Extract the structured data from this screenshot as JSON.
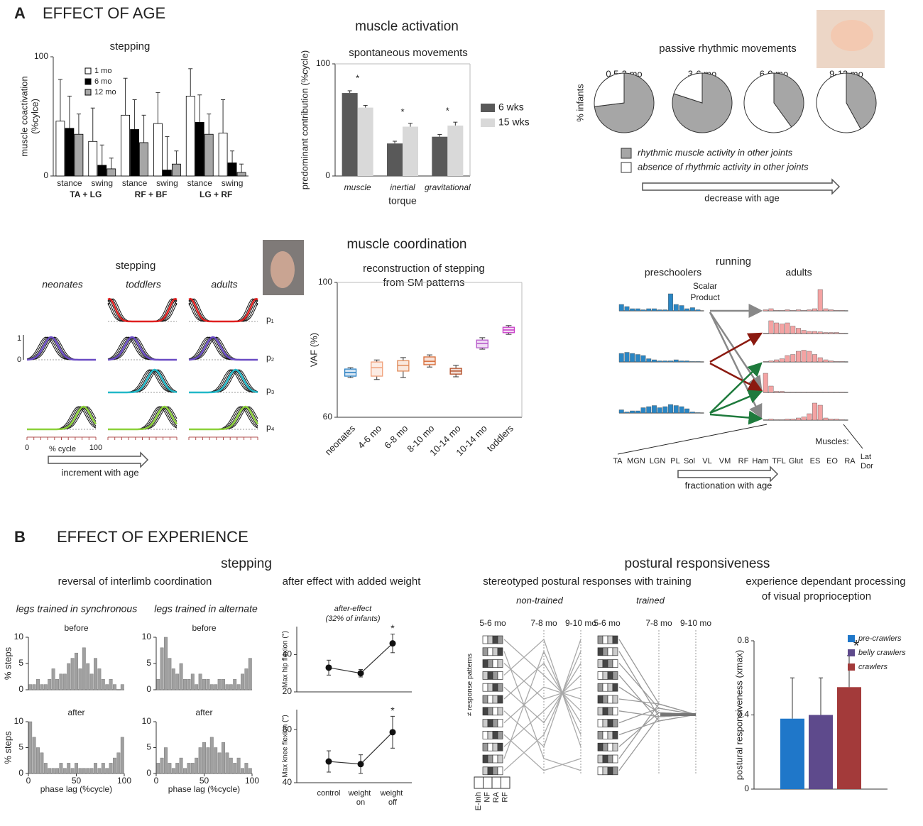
{
  "labels": {
    "panel_a": "A",
    "effect_age": "EFFECT OF AGE",
    "muscle_activation": "muscle activation",
    "muscle_coordination": "muscle coordination",
    "coordination_subtitle": [
      "reconstruction of stepping",
      "from SM patterns"
    ],
    "panel_b": "B",
    "effect_experience": "EFFECT OF EXPERIENCE",
    "stepping_b": "stepping",
    "postural": "postural responsiveness",
    "reversal": "reversal of interlimb coordination",
    "synchronous": "legs trained in synchronous",
    "alternate": "legs trained in alternate",
    "after_effect": "after effect with added weight",
    "after_effect_note": [
      "after-effect",
      "(32% of infants)"
    ],
    "stereotyped": "stereotyped postural responses with training",
    "visual": [
      "experience dependant processing",
      "of  visual proprioception"
    ]
  },
  "traces": {
    "title": "stepping",
    "columns": [
      "neonates",
      "toddlers",
      "adults"
    ],
    "rows": [
      "p₁",
      "p₂",
      "p₃",
      "p₄"
    ],
    "y_labels": [
      "1",
      "0"
    ],
    "x_labels": [
      "0",
      "% cycle",
      "100"
    ],
    "arrow": "increment with age"
  },
  "responses": {
    "groups": [
      "non-trained",
      "trained"
    ],
    "ages": [
      "5-6 mo",
      "7-8 mo",
      "9-10 mo",
      "5-6 mo",
      "7-8 mo",
      "9-10 mo"
    ],
    "ylabel": "≠ response patterns",
    "muscles": [
      "E-Inh",
      "NF",
      "RA",
      "RF"
    ]
  },
  "chart_data": [
    {
      "type": "bar",
      "title": "stepping",
      "ylabel": [
        "muscle coactivation",
        "(%cylce)"
      ],
      "categories": [
        "stance",
        "swing",
        "stance",
        "swing",
        "stance",
        "swing"
      ],
      "groups": [
        "TA + LG",
        "RF + BF",
        "LG + RF"
      ],
      "ylim": [
        0,
        100
      ],
      "yticks": [
        0,
        100
      ],
      "legend": "upper left",
      "series": [
        {
          "name": "1 mo",
          "color": "#ffffff",
          "values": [
            46,
            29,
            51,
            44,
            67,
            36
          ],
          "errors": [
            35,
            28,
            31,
            26,
            23,
            28
          ]
        },
        {
          "name": "6 mo",
          "color": "#000000",
          "values": [
            40,
            9,
            39,
            5,
            45,
            11
          ],
          "errors": [
            27,
            17,
            25,
            28,
            23,
            10
          ]
        },
        {
          "name": "12 mo",
          "color": "#a6a6a6",
          "values": [
            35,
            6,
            28,
            10,
            35,
            3
          ],
          "errors": [
            17,
            9,
            23,
            11,
            17,
            7
          ]
        }
      ]
    },
    {
      "type": "bar",
      "title": "spontaneous movements",
      "ylabel": "predominant contribution (%cycle)",
      "xlabel": "torque",
      "categories": [
        "muscle",
        "inertial",
        "gravitational"
      ],
      "ylim": [
        0,
        100
      ],
      "yticks": [
        0,
        100
      ],
      "legend": "right",
      "annotations": [
        "*",
        "*",
        "*"
      ],
      "series": [
        {
          "name": "6 wks",
          "color": "#595959",
          "values": [
            74,
            29,
            35
          ],
          "errors": [
            2,
            2,
            2
          ]
        },
        {
          "name": "15 wks",
          "color": "#d9d9d9",
          "values": [
            61,
            44,
            45
          ],
          "errors": [
            2,
            3,
            3
          ]
        }
      ]
    },
    {
      "type": "pie",
      "title": "passive rhythmic movements",
      "ylabel": "% infants",
      "xlabel": "decrease with age",
      "categories": [
        "rhythmic muscle activity in other joints",
        "absence of rhythmic activity in other joints"
      ],
      "colors": [
        "#a6a6a6",
        "#ffffff"
      ],
      "pies": [
        {
          "name": "0.5-3 mo",
          "values": [
            73,
            27
          ]
        },
        {
          "name": "3-6 mo",
          "values": [
            80,
            20
          ]
        },
        {
          "name": "6-9 mo",
          "values": [
            40,
            60
          ]
        },
        {
          "name": "9-12 mo",
          "values": [
            42,
            58
          ]
        }
      ]
    },
    {
      "type": "box",
      "ylabel": "VAF (%)",
      "ylim": [
        60,
        100
      ],
      "yticks": [
        60,
        100
      ],
      "categories": [
        "neonates",
        "4-6 mo",
        "6-8 mo",
        "8-10 mo",
        "10-14 mo",
        "10-14 mo",
        "toddlers"
      ],
      "colors": [
        "#2a7fc1",
        "#f0a07a",
        "#e08a5a",
        "#d66a35",
        "#b4502a",
        "#b455c8",
        "#c83cc8"
      ],
      "boxes": [
        {
          "min": 71.8,
          "q1": 72.2,
          "median": 73.3,
          "q3": 74.3,
          "max": 74.7
        },
        {
          "min": 71.2,
          "q1": 72.2,
          "median": 74.7,
          "q3": 76.4,
          "max": 77.0
        },
        {
          "min": 71.8,
          "q1": 73.7,
          "median": 75.4,
          "q3": 76.8,
          "max": 77.7
        },
        {
          "min": 74.9,
          "q1": 75.6,
          "median": 76.6,
          "q3": 77.9,
          "max": 78.5
        },
        {
          "min": 72.0,
          "q1": 72.8,
          "median": 73.7,
          "q3": 74.5,
          "max": 75.4
        },
        {
          "min": 80.2,
          "q1": 80.6,
          "median": 81.9,
          "q3": 82.9,
          "max": 83.6
        },
        {
          "min": 84.6,
          "q1": 85.1,
          "median": 85.9,
          "q3": 86.7,
          "max": 87.2
        }
      ]
    },
    {
      "type": "patterns",
      "title": "running",
      "groups": [
        "preschoolers",
        "adults"
      ],
      "note": [
        "Scalar",
        "Product"
      ],
      "muscles_title": "Muscles:",
      "xlabel": "fractionation with age",
      "muscles": [
        "TA",
        "MGN",
        "LGN",
        "PL",
        "Sol",
        "VL",
        "VM",
        "RF",
        "Ham",
        "TFL",
        "Glut",
        "ES",
        "EO",
        "RA",
        "Lat Dor"
      ],
      "colors": [
        "#2a86c4",
        "#f4a3a3"
      ],
      "preschoolers": [
        [
          0.3,
          0.2,
          0.1,
          0.1,
          0.05,
          0.1,
          0.1,
          0.05,
          0.05,
          0.8,
          0.3,
          0.25,
          0.1,
          0.15,
          0.05
        ],
        [
          0.4,
          0.45,
          0.4,
          0.35,
          0.3,
          0.15,
          0.1,
          0.05,
          0.05,
          0.05,
          0.1,
          0.05,
          0.05,
          0.02,
          0.02
        ],
        [
          0.15,
          0.05,
          0.1,
          0.1,
          0.25,
          0.3,
          0.35,
          0.25,
          0.3,
          0.4,
          0.35,
          0.3,
          0.2,
          0.05,
          0.02
        ]
      ],
      "adults": [
        [
          0.05,
          0.1,
          0.02,
          0.02,
          0.05,
          0.02,
          0.05,
          0.02,
          0.05,
          0.1,
          1.0,
          0.1,
          0.05,
          0.02,
          0.02
        ],
        [
          0.02,
          0.6,
          0.5,
          0.45,
          0.5,
          0.35,
          0.25,
          0.15,
          0.1,
          0.1,
          0.08,
          0.05,
          0.05,
          0.05,
          0.02
        ],
        [
          0.02,
          0.05,
          0.1,
          0.15,
          0.3,
          0.35,
          0.5,
          0.55,
          0.5,
          0.35,
          0.2,
          0.1,
          0.05,
          0.02,
          0.02
        ],
        [
          0.9,
          0.3,
          0.05,
          0.05,
          0.02,
          0.02,
          0.02,
          0.02,
          0.02,
          0.02,
          0.02,
          0.02,
          0.02,
          0.02,
          0.02
        ],
        [
          0.02,
          0.05,
          0.02,
          0.02,
          0.05,
          0.05,
          0.1,
          0.15,
          0.3,
          0.8,
          0.7,
          0.1,
          0.05,
          0.05,
          0.02
        ]
      ]
    },
    {
      "type": "histogram",
      "title": "before",
      "ylabel": "% steps",
      "xlim": [
        0,
        100
      ],
      "ylim": [
        0,
        10
      ],
      "yticks": [
        0,
        5,
        10
      ],
      "bins": [
        0,
        4,
        8,
        12,
        16,
        20,
        24,
        28,
        32,
        36,
        40,
        44,
        48,
        52,
        56,
        60,
        64,
        68,
        72,
        76,
        80,
        84,
        88,
        92,
        96,
        100
      ],
      "counts": [
        1,
        1,
        2,
        1,
        1,
        2,
        4,
        2,
        3,
        3,
        5,
        6,
        7,
        4,
        8,
        5,
        3,
        6,
        4,
        2,
        1,
        2,
        1,
        0,
        1
      ]
    },
    {
      "type": "histogram",
      "title": "after",
      "ylabel": "% steps",
      "xlabel": "phase lag (%cycle)",
      "xlim": [
        0,
        100
      ],
      "xticks": [
        0,
        50,
        100
      ],
      "ylim": [
        0,
        10
      ],
      "yticks": [
        0,
        5,
        10
      ],
      "bins": [
        0,
        4,
        8,
        12,
        16,
        20,
        24,
        28,
        32,
        36,
        40,
        44,
        48,
        52,
        56,
        60,
        64,
        68,
        72,
        76,
        80,
        84,
        88,
        92,
        96,
        100
      ],
      "counts": [
        10,
        7,
        5,
        4,
        2,
        1,
        1,
        1,
        2,
        1,
        2,
        1,
        2,
        1,
        1,
        1,
        1,
        2,
        1,
        2,
        1,
        2,
        3,
        4,
        7
      ]
    },
    {
      "type": "histogram",
      "title": "before",
      "xlim": [
        0,
        100
      ],
      "ylim": [
        0,
        10
      ],
      "yticks": [
        0,
        5,
        10
      ],
      "bins": [
        0,
        4,
        8,
        12,
        16,
        20,
        24,
        28,
        32,
        36,
        40,
        44,
        48,
        52,
        56,
        60,
        64,
        68,
        72,
        76,
        80,
        84,
        88,
        92,
        96,
        100
      ],
      "counts": [
        2,
        8,
        10,
        6,
        4,
        3,
        5,
        2,
        2,
        3,
        1,
        3,
        2,
        2,
        1,
        1,
        2,
        2,
        1,
        1,
        2,
        1,
        3,
        4,
        6
      ]
    },
    {
      "type": "histogram",
      "title": "after",
      "xlabel": "phase lag (%cycle)",
      "xlim": [
        0,
        100
      ],
      "xticks": [
        0,
        50,
        100
      ],
      "ylim": [
        0,
        10
      ],
      "yticks": [
        0,
        5,
        10
      ],
      "bins": [
        0,
        4,
        8,
        12,
        16,
        20,
        24,
        28,
        32,
        36,
        40,
        44,
        48,
        52,
        56,
        60,
        64,
        68,
        72,
        76,
        80,
        84,
        88,
        92,
        96,
        100
      ],
      "counts": [
        2,
        3,
        5,
        2,
        1,
        2,
        3,
        1,
        2,
        2,
        3,
        5,
        6,
        5,
        7,
        5,
        4,
        6,
        4,
        3,
        2,
        3,
        1,
        2,
        1
      ]
    },
    {
      "type": "line",
      "ylabel": "Max hip flexion (°)",
      "ylim": [
        20,
        55
      ],
      "yticks": [
        20,
        40
      ],
      "values": [
        33,
        30,
        46
      ],
      "errors": [
        4,
        2,
        5
      ],
      "annotations": [
        null,
        null,
        "*"
      ]
    },
    {
      "type": "line",
      "ylabel": "Max knee flexion (°)",
      "ylim": [
        40,
        95
      ],
      "yticks": [
        40,
        80
      ],
      "categories": [
        "control",
        "weight on",
        "weight off"
      ],
      "values": [
        56,
        54,
        78
      ],
      "errors": [
        8,
        7,
        12
      ],
      "annotations": [
        null,
        null,
        "*"
      ]
    },
    {
      "type": "bar",
      "ylabel": "postural responsiveness (xmax)",
      "ylim": [
        0,
        0.8
      ],
      "yticks": [
        0,
        0.4,
        0.8
      ],
      "legend": "upper right",
      "annotations": [
        null,
        null,
        "*"
      ],
      "series": [
        {
          "name": "pre-crawlers",
          "color": "#1f77c9",
          "values": [
            0.38
          ],
          "errors": [
            0.22
          ]
        },
        {
          "name": "belly crawlers",
          "color": "#5e4a8c",
          "values": [
            0.4
          ],
          "errors": [
            0.2
          ]
        },
        {
          "name": "crawlers",
          "color": "#a33a3a",
          "values": [
            0.55
          ],
          "errors": [
            0.17
          ]
        }
      ]
    }
  ]
}
